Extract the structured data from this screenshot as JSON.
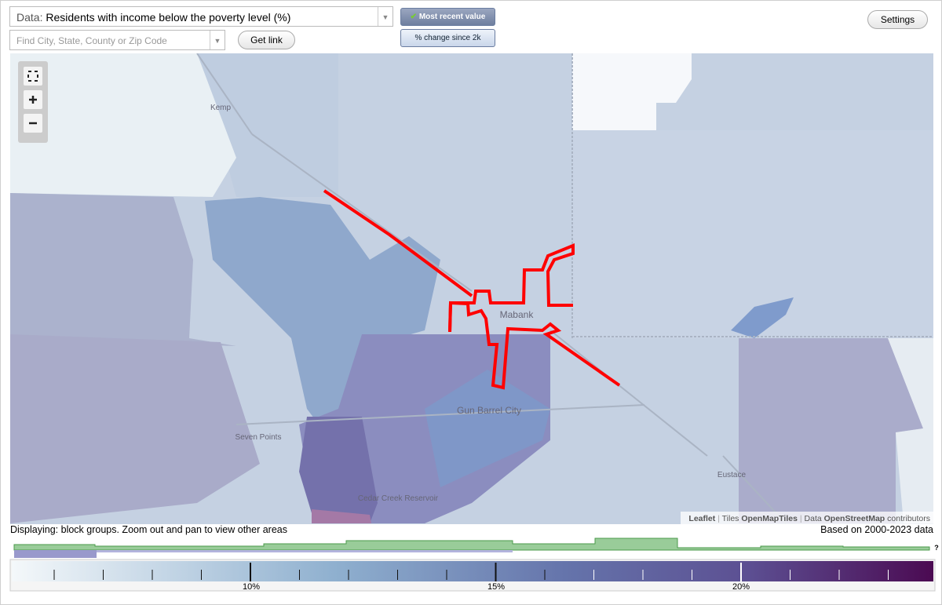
{
  "controls": {
    "data_prefix": "Data:",
    "data_select": "Residents with income below the poverty level (%)",
    "search_placeholder": "Find City, State, County or Zip Code",
    "get_link": "Get link",
    "mode_buttons": [
      "Most recent value",
      "% change since 2k"
    ],
    "settings": "Settings"
  },
  "map": {
    "place_labels": [
      "Kemp",
      "Mabank",
      "Gun Barrel City",
      "Seven Points",
      "Cedar Creek Reservoir",
      "Eustace"
    ],
    "attribution": [
      "Leaflet",
      "|",
      "Tiles",
      "OpenMapTiles",
      "|",
      "Data",
      "OpenStreetMap",
      "contributors"
    ]
  },
  "status": {
    "displaying": "Displaying: block groups. Zoom out and pan to view other areas",
    "based_on": "Based on 2000-2023 data"
  },
  "legend": {
    "labels": [
      "10%",
      "15%",
      "20%"
    ],
    "help": "?"
  }
}
